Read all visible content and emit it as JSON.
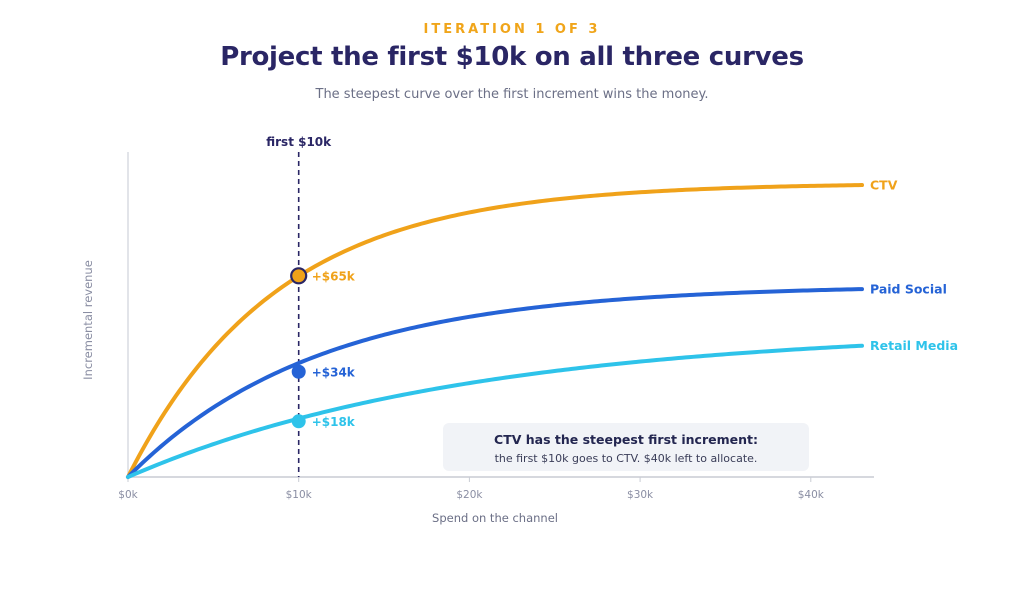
{
  "header": {
    "eyebrow": "ITERATION 1 OF 3",
    "title": "Project the first $10k on all three curves",
    "subtitle": "The steepest curve over the first increment wins the money."
  },
  "note": {
    "title": "CTV has the steepest first increment:",
    "body": "the first $10k goes to CTV. $40k left to allocate."
  },
  "chart_data": {
    "type": "line",
    "xlabel": "Spend on the channel",
    "ylabel": "Incremental revenue",
    "x_ticks": [
      "$0k",
      "$10k",
      "$20k",
      "$30k",
      "$40k"
    ],
    "x_tick_values": [
      0,
      10,
      20,
      30,
      40
    ],
    "xlim": [
      0,
      43
    ],
    "ylim": [
      0,
      105
    ],
    "grid": false,
    "marker": {
      "x": 10,
      "label": "first $10k"
    },
    "series": [
      {
        "name": "CTV",
        "color": "#f0a21a",
        "asymptote": 95,
        "decay_k": 0.115,
        "point": {
          "x": 10,
          "value": 65,
          "label": "+$65k"
        }
      },
      {
        "name": "Paid Social",
        "color": "#2563d6",
        "asymptote": 62,
        "decay_k": 0.09,
        "point": {
          "x": 10,
          "value": 34,
          "label": "+$34k"
        }
      },
      {
        "name": "Retail Media",
        "color": "#2ec3ea",
        "asymptote": 48,
        "decay_k": 0.05,
        "point": {
          "x": 10,
          "value": 18,
          "label": "+$18k"
        }
      }
    ]
  }
}
